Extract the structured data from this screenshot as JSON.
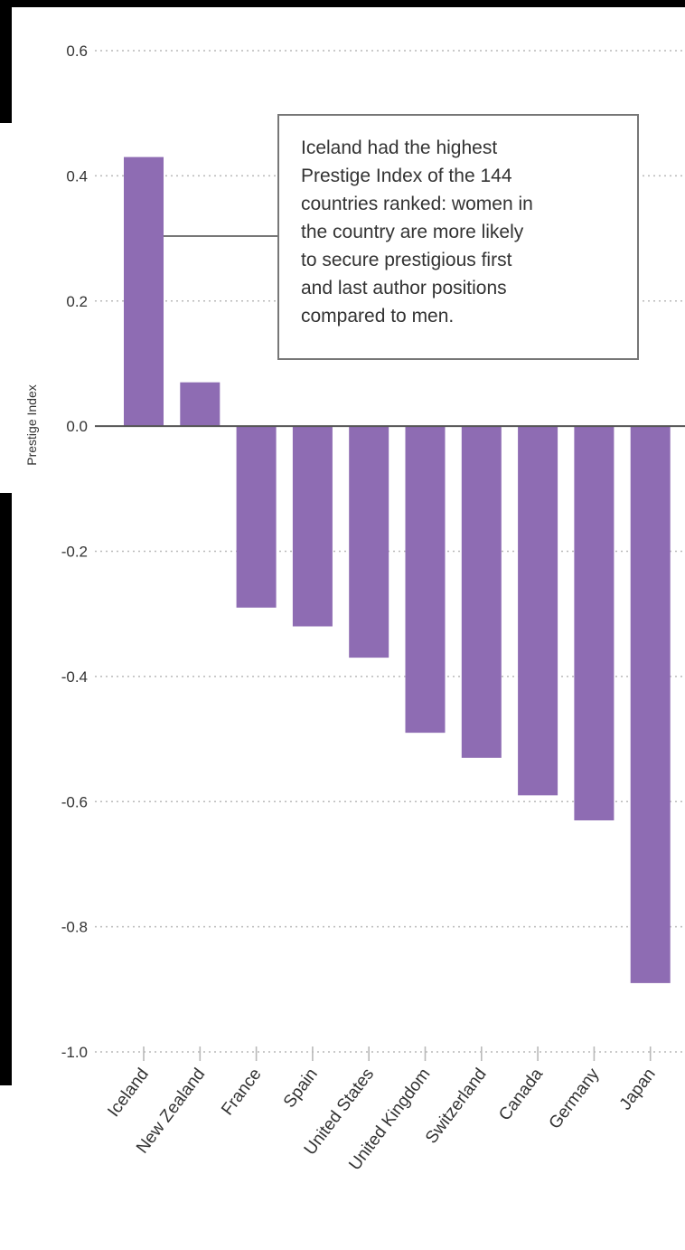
{
  "chart_data": {
    "type": "bar",
    "ylabel": "Prestige Index",
    "xlabel": "",
    "title": "",
    "ylim": [
      -1.0,
      0.6
    ],
    "yticks": [
      0.6,
      0.4,
      0.2,
      0.0,
      -0.2,
      -0.4,
      -0.6,
      -0.8,
      -1.0
    ],
    "ytick_labels": [
      "0.6",
      "0.4",
      "0.2",
      "0.0",
      "-0.2",
      "-0.4",
      "-0.6",
      "-0.8",
      "-1.0"
    ],
    "categories": [
      "Iceland",
      "New Zealand",
      "France",
      "Spain",
      "United States",
      "United Kingdom",
      "Switzerland",
      "Canada",
      "Germany",
      "Japan"
    ],
    "values": [
      0.43,
      0.07,
      -0.29,
      -0.32,
      -0.37,
      -0.49,
      -0.53,
      -0.59,
      -0.63,
      -0.89
    ],
    "grid": true,
    "bar_color": "#8e6cb3",
    "annotation": {
      "target": "Iceland",
      "text": "Iceland had the highest\nPrestige Index of the 144\ncountries ranked: women in\nthe country are more likely\nto secure prestigious first\nand last author positions\ncompared to men."
    }
  }
}
